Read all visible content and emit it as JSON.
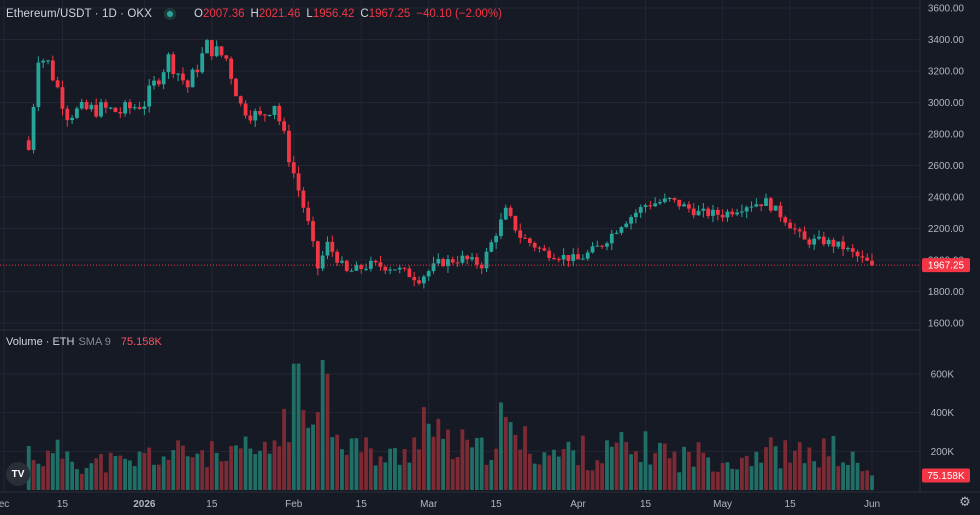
{
  "header": {
    "symbol": "Ethereum/USDT · 1D · OKX",
    "open_label": "O",
    "open": "2007.36",
    "high_label": "H",
    "high": "2021.46",
    "low_label": "L",
    "low": "1956.42",
    "close_label": "C",
    "close": "1967.25",
    "change": "−40.10 (−2.00%)"
  },
  "volume_pane": {
    "title": "Volume · ETH",
    "sma_label": "SMA 9",
    "value": "75.158K"
  },
  "logo_text": "TV",
  "colors": {
    "up": "#26a69a",
    "down": "#f23645",
    "up_vol": "#1f6f67",
    "down_vol": "#7c2b34",
    "background": "#161a25",
    "grid": "#232632"
  },
  "chart_data": [
    {
      "type": "candlestick",
      "title": "Ethereum/USDT · 1D · OKX",
      "ylim": [
        1600,
        3600
      ],
      "y_ticks": [
        "3600.00",
        "3400.00",
        "3200.00",
        "3000.00",
        "2800.00",
        "2600.00",
        "2400.00",
        "2200.00",
        "2000.00",
        "1800.00",
        "1600.00"
      ],
      "x_tick_labels": [
        "ec",
        "15",
        "2026",
        "15",
        "Feb",
        "15",
        "Mar",
        "15",
        "Apr",
        "15",
        "May",
        "15",
        "Jun"
      ],
      "last_price_label": "1967.25",
      "last_price": 1967.25,
      "series": [
        {
          "x": "Dec 8",
          "close": 2700,
          "direction": "down"
        },
        {
          "x": "Dec 10",
          "close": 3300,
          "direction": "up"
        },
        {
          "x": "Dec 12",
          "close": 3250,
          "direction": "down"
        },
        {
          "x": "Dec 16",
          "close": 2930,
          "direction": "down"
        },
        {
          "x": "Dec 19",
          "close": 2950,
          "direction": "up"
        },
        {
          "x": "Dec 23",
          "close": 2960,
          "direction": "up"
        },
        {
          "x": "Dec 27",
          "close": 2940,
          "direction": "down"
        },
        {
          "x": "Jan 1",
          "close": 3000,
          "direction": "up"
        },
        {
          "x": "Jan 6",
          "close": 3280,
          "direction": "up"
        },
        {
          "x": "Jan 10",
          "close": 3100,
          "direction": "down"
        },
        {
          "x": "Jan 14",
          "close": 3360,
          "direction": "up"
        },
        {
          "x": "Jan 18",
          "close": 3280,
          "direction": "down"
        },
        {
          "x": "Jan 21",
          "close": 2980,
          "direction": "down"
        },
        {
          "x": "Jan 25",
          "close": 2900,
          "direction": "down"
        },
        {
          "x": "Jan 28",
          "close": 3000,
          "direction": "up"
        },
        {
          "x": "Feb 1",
          "close": 2550,
          "direction": "down"
        },
        {
          "x": "Feb 4",
          "close": 2230,
          "direction": "down"
        },
        {
          "x": "Feb 6",
          "close": 1950,
          "direction": "down"
        },
        {
          "x": "Feb 8",
          "close": 2100,
          "direction": "up"
        },
        {
          "x": "Feb 12",
          "close": 1920,
          "direction": "down"
        },
        {
          "x": "Feb 17",
          "close": 1970,
          "direction": "up"
        },
        {
          "x": "Feb 22",
          "close": 1950,
          "direction": "down"
        },
        {
          "x": "Feb 27",
          "close": 1880,
          "direction": "down"
        },
        {
          "x": "Mar 3",
          "close": 1980,
          "direction": "up"
        },
        {
          "x": "Mar 8",
          "close": 2010,
          "direction": "up"
        },
        {
          "x": "Mar 12",
          "close": 1970,
          "direction": "down"
        },
        {
          "x": "Mar 17",
          "close": 2310,
          "direction": "up"
        },
        {
          "x": "Mar 20",
          "close": 2150,
          "direction": "down"
        },
        {
          "x": "Mar 25",
          "close": 2050,
          "direction": "down"
        },
        {
          "x": "Apr 1",
          "close": 2000,
          "direction": "down"
        },
        {
          "x": "Apr 6",
          "close": 2100,
          "direction": "up"
        },
        {
          "x": "Apr 10",
          "close": 2230,
          "direction": "up"
        },
        {
          "x": "Apr 15",
          "close": 2350,
          "direction": "up"
        },
        {
          "x": "Apr 20",
          "close": 2380,
          "direction": "up"
        },
        {
          "x": "Apr 26",
          "close": 2300,
          "direction": "down"
        },
        {
          "x": "May 1",
          "close": 2290,
          "direction": "down"
        },
        {
          "x": "May 6",
          "close": 2350,
          "direction": "up"
        },
        {
          "x": "May 10",
          "close": 2370,
          "direction": "up"
        },
        {
          "x": "May 14",
          "close": 2260,
          "direction": "down"
        },
        {
          "x": "May 18",
          "close": 2120,
          "direction": "down"
        },
        {
          "x": "May 22",
          "close": 2120,
          "direction": "up"
        },
        {
          "x": "May 26",
          "close": 2080,
          "direction": "down"
        },
        {
          "x": "May 30",
          "close": 2000,
          "direction": "down"
        },
        {
          "x": "Jun 1",
          "close": 1967.25,
          "direction": "down"
        }
      ]
    },
    {
      "type": "bar",
      "title": "Volume · ETH",
      "ylim": [
        0,
        750000
      ],
      "y_ticks": [
        "600K",
        "400K",
        "200K"
      ],
      "last_value_label": "75.158K",
      "series": [
        {
          "x": "Dec 8",
          "value": 200000
        },
        {
          "x": "Dec 12",
          "value": 160000
        },
        {
          "x": "Dec 16",
          "value": 210000
        },
        {
          "x": "Dec 20",
          "value": 120000
        },
        {
          "x": "Dec 24",
          "value": 150000
        },
        {
          "x": "Dec 28",
          "value": 130000
        },
        {
          "x": "Jan 2",
          "value": 180000
        },
        {
          "x": "Jan 6",
          "value": 170000
        },
        {
          "x": "Jan 10",
          "value": 200000
        },
        {
          "x": "Jan 14",
          "value": 190000
        },
        {
          "x": "Jan 18",
          "value": 140000
        },
        {
          "x": "Jan 22",
          "value": 210000
        },
        {
          "x": "Jan 26",
          "value": 180000
        },
        {
          "x": "Jan 29",
          "value": 280000
        },
        {
          "x": "Jan 31",
          "value": 420000
        },
        {
          "x": "Feb 2",
          "value": 500000
        },
        {
          "x": "Feb 4",
          "value": 390000
        },
        {
          "x": "Feb 6",
          "value": 720000
        },
        {
          "x": "Feb 7",
          "value": 600000
        },
        {
          "x": "Feb 9",
          "value": 400000
        },
        {
          "x": "Feb 12",
          "value": 260000
        },
        {
          "x": "Feb 16",
          "value": 200000
        },
        {
          "x": "Feb 20",
          "value": 160000
        },
        {
          "x": "Feb 24",
          "value": 180000
        },
        {
          "x": "Feb 28",
          "value": 370000
        },
        {
          "x": "Mar 4",
          "value": 230000
        },
        {
          "x": "Mar 8",
          "value": 220000
        },
        {
          "x": "Mar 12",
          "value": 190000
        },
        {
          "x": "Mar 16",
          "value": 330000
        },
        {
          "x": "Mar 20",
          "value": 250000
        },
        {
          "x": "Mar 24",
          "value": 200000
        },
        {
          "x": "Mar 28",
          "value": 180000
        },
        {
          "x": "Apr 1",
          "value": 210000
        },
        {
          "x": "Apr 5",
          "value": 160000
        },
        {
          "x": "Apr 9",
          "value": 220000
        },
        {
          "x": "Apr 13",
          "value": 190000
        },
        {
          "x": "Apr 17",
          "value": 230000
        },
        {
          "x": "Apr 21",
          "value": 160000
        },
        {
          "x": "Apr 25",
          "value": 180000
        },
        {
          "x": "Apr 29",
          "value": 170000
        },
        {
          "x": "May 3",
          "value": 150000
        },
        {
          "x": "May 7",
          "value": 190000
        },
        {
          "x": "May 11",
          "value": 200000
        },
        {
          "x": "May 15",
          "value": 180000
        },
        {
          "x": "May 19",
          "value": 170000
        },
        {
          "x": "May 23",
          "value": 210000
        },
        {
          "x": "May 27",
          "value": 160000
        },
        {
          "x": "Jun 1",
          "value": 75158
        }
      ]
    }
  ]
}
